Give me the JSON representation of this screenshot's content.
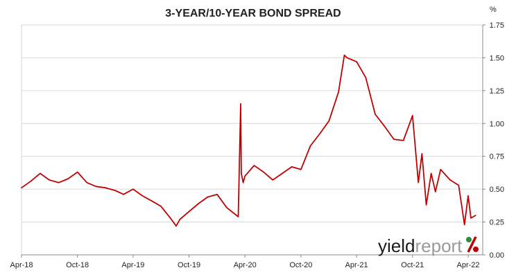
{
  "chart_data": {
    "type": "line",
    "title": "3-YEAR/10-YEAR BOND SPREAD",
    "y_unit": "%",
    "xlabel": "",
    "ylabel": "",
    "ylim": [
      0,
      1.75
    ],
    "y_ticks": [
      "0.00",
      "0.25",
      "0.50",
      "0.75",
      "1.00",
      "1.25",
      "1.50",
      "1.75"
    ],
    "x_ticks": [
      "Apr-18",
      "Oct-18",
      "Apr-19",
      "Oct-19",
      "Apr-20",
      "Oct-20",
      "Apr-21",
      "Oct-21",
      "Apr-22"
    ],
    "grid": "horizontal",
    "axis_side": "right",
    "legend": "none",
    "series": [
      {
        "color": "#c00000",
        "x": [
          "2018-04",
          "2018-05",
          "2018-06",
          "2018-07",
          "2018-08",
          "2018-09",
          "2018-10",
          "2018-11",
          "2018-12",
          "2019-01",
          "2019-02",
          "2019-03",
          "2019-04",
          "2019-05",
          "2019-06",
          "2019-07",
          "2019-08",
          "2019-08-20",
          "2019-09",
          "2019-10",
          "2019-11",
          "2019-12",
          "2020-01",
          "2020-02",
          "2020-03-10",
          "2020-03-18",
          "2020-03-20",
          "2020-03-26",
          "2020-04",
          "2020-05",
          "2020-06",
          "2020-07",
          "2020-08",
          "2020-09",
          "2020-10",
          "2020-11",
          "2020-12",
          "2021-01",
          "2021-02",
          "2021-02-20",
          "2021-03",
          "2021-04",
          "2021-05",
          "2021-06",
          "2021-07",
          "2021-08",
          "2021-09",
          "2021-10",
          "2021-10-20",
          "2021-11",
          "2021-11-15",
          "2021-12",
          "2021-12-15",
          "2022-01",
          "2022-02",
          "2022-03",
          "2022-03-20",
          "2022-04",
          "2022-04-10",
          "2022-04-25"
        ],
        "y": [
          0.51,
          0.56,
          0.62,
          0.57,
          0.55,
          0.58,
          0.63,
          0.55,
          0.52,
          0.51,
          0.49,
          0.46,
          0.5,
          0.45,
          0.41,
          0.37,
          0.28,
          0.22,
          0.27,
          0.33,
          0.39,
          0.44,
          0.46,
          0.36,
          0.29,
          1.15,
          0.62,
          0.55,
          0.6,
          0.68,
          0.63,
          0.57,
          0.62,
          0.67,
          0.65,
          0.83,
          0.92,
          1.02,
          1.24,
          1.52,
          1.5,
          1.47,
          1.35,
          1.07,
          0.98,
          0.88,
          0.87,
          1.06,
          0.55,
          0.77,
          0.38,
          0.62,
          0.48,
          0.65,
          0.57,
          0.53,
          0.23,
          0.45,
          0.28,
          0.3
        ]
      }
    ]
  },
  "branding": {
    "logo_yield": "yield",
    "logo_report": "report",
    "logo_percent": "%",
    "logo_green": "#2e8b3a",
    "logo_red": "#c00000"
  }
}
